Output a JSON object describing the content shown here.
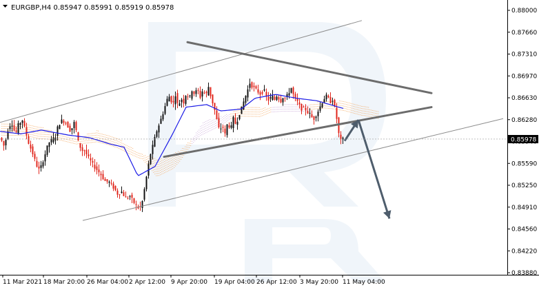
{
  "chart_data": {
    "type": "candlestick",
    "symbol_header": "EURGBP,H4  0.85947  0.85991  0.85919  0.85978",
    "current_price": "0.85978",
    "y_ticks": [
      "0.88000",
      "0.87660",
      "0.87310",
      "0.86970",
      "0.86630",
      "0.86280",
      "0.85940",
      "0.85590",
      "0.85250",
      "0.84910",
      "0.84560",
      "0.84220",
      "0.83880"
    ],
    "ylim": [
      0.8388,
      0.88
    ],
    "x_ticks": [
      "11 Mar 2021",
      "18 Mar 20:00",
      "26 Mar 04:00",
      "2 Apr 12:00",
      "9 Apr 20:00",
      "19 Apr 04:00",
      "26 Apr 12:00",
      "3 May 20:00",
      "11 May 04:00"
    ],
    "price_path": [
      [
        0,
        0.86
      ],
      [
        6,
        0.8585
      ],
      [
        10,
        0.861
      ],
      [
        16,
        0.8625
      ],
      [
        22,
        0.8605
      ],
      [
        26,
        0.862
      ],
      [
        32,
        0.8628
      ],
      [
        36,
        0.8612
      ],
      [
        41,
        0.8592
      ],
      [
        47,
        0.8575
      ],
      [
        52,
        0.8558
      ],
      [
        57,
        0.8548
      ],
      [
        64,
        0.8571
      ],
      [
        70,
        0.8592
      ],
      [
        75,
        0.8596
      ],
      [
        80,
        0.8602
      ],
      [
        84,
        0.862
      ],
      [
        90,
        0.8628
      ],
      [
        96,
        0.8622
      ],
      [
        102,
        0.861
      ],
      [
        108,
        0.8626
      ],
      [
        112,
        0.8596
      ],
      [
        118,
        0.858
      ],
      [
        122,
        0.858
      ],
      [
        128,
        0.8568
      ],
      [
        134,
        0.8558
      ],
      [
        140,
        0.855
      ],
      [
        146,
        0.8542
      ],
      [
        152,
        0.8532
      ],
      [
        158,
        0.853
      ],
      [
        164,
        0.8522
      ],
      [
        170,
        0.8512
      ],
      [
        176,
        0.8515
      ],
      [
        182,
        0.8505
      ],
      [
        188,
        0.8508
      ],
      [
        194,
        0.8498
      ],
      [
        198,
        0.8492
      ],
      [
        202,
        0.8488
      ],
      [
        206,
        0.85
      ],
      [
        210,
        0.8525
      ],
      [
        214,
        0.8552
      ],
      [
        218,
        0.8575
      ],
      [
        222,
        0.859
      ],
      [
        226,
        0.8608
      ],
      [
        230,
        0.862
      ],
      [
        234,
        0.8632
      ],
      [
        238,
        0.8646
      ],
      [
        242,
        0.866
      ],
      [
        246,
        0.8666
      ],
      [
        250,
        0.865
      ],
      [
        254,
        0.8668
      ],
      [
        258,
        0.8648
      ],
      [
        262,
        0.8662
      ],
      [
        266,
        0.8656
      ],
      [
        270,
        0.8671
      ],
      [
        274,
        0.866
      ],
      [
        278,
        0.8675
      ],
      [
        282,
        0.8668
      ],
      [
        286,
        0.8677
      ],
      [
        290,
        0.8664
      ],
      [
        294,
        0.8676
      ],
      [
        298,
        0.8665
      ],
      [
        302,
        0.868
      ],
      [
        306,
        0.8662
      ],
      [
        310,
        0.8648
      ],
      [
        314,
        0.8628
      ],
      [
        318,
        0.861
      ],
      [
        322,
        0.862
      ],
      [
        326,
        0.8605
      ],
      [
        330,
        0.8625
      ],
      [
        334,
        0.8612
      ],
      [
        338,
        0.863
      ],
      [
        342,
        0.862
      ],
      [
        346,
        0.8636
      ],
      [
        350,
        0.8646
      ],
      [
        354,
        0.866
      ],
      [
        358,
        0.8672
      ],
      [
        362,
        0.8686
      ],
      [
        366,
        0.868
      ],
      [
        370,
        0.8676
      ],
      [
        374,
        0.8672
      ],
      [
        378,
        0.8668
      ],
      [
        382,
        0.8676
      ],
      [
        386,
        0.8664
      ],
      [
        390,
        0.8658
      ],
      [
        394,
        0.8666
      ],
      [
        398,
        0.866
      ],
      [
        402,
        0.8668
      ],
      [
        406,
        0.8656
      ],
      [
        410,
        0.8664
      ],
      [
        414,
        0.8661
      ],
      [
        418,
        0.867
      ],
      [
        422,
        0.8678
      ],
      [
        426,
        0.8664
      ],
      [
        430,
        0.8658
      ],
      [
        434,
        0.865
      ],
      [
        438,
        0.8644
      ],
      [
        442,
        0.8646
      ],
      [
        446,
        0.864
      ],
      [
        450,
        0.8636
      ],
      [
        454,
        0.8628
      ],
      [
        458,
        0.8636
      ],
      [
        462,
        0.8644
      ],
      [
        466,
        0.8654
      ],
      [
        470,
        0.8662
      ],
      [
        474,
        0.8666
      ],
      [
        478,
        0.8656
      ],
      [
        482,
        0.866
      ],
      [
        484,
        0.8652
      ],
      [
        486,
        0.8642
      ],
      [
        488,
        0.863
      ],
      [
        490,
        0.8612
      ],
      [
        492,
        0.86
      ],
      [
        494,
        0.8596
      ],
      [
        496,
        0.8598
      ],
      [
        498,
        0.8597
      ]
    ],
    "cloud_path": [
      [
        0,
        0.8625
      ],
      [
        40,
        0.8624
      ],
      [
        80,
        0.861
      ],
      [
        110,
        0.86
      ],
      [
        140,
        0.8612
      ],
      [
        170,
        0.86
      ],
      [
        200,
        0.8578
      ],
      [
        230,
        0.8566
      ],
      [
        260,
        0.858
      ],
      [
        290,
        0.8612
      ],
      [
        320,
        0.8628
      ],
      [
        350,
        0.8652
      ],
      [
        380,
        0.8648
      ],
      [
        410,
        0.865
      ],
      [
        440,
        0.865
      ],
      [
        470,
        0.866
      ],
      [
        500,
        0.8658
      ],
      [
        530,
        0.865
      ],
      [
        548,
        0.8642
      ]
    ],
    "kijun_path": [
      [
        0,
        0.861
      ],
      [
        30,
        0.8606
      ],
      [
        60,
        0.8612
      ],
      [
        100,
        0.8604
      ],
      [
        130,
        0.86
      ],
      [
        160,
        0.859
      ],
      [
        180,
        0.8585
      ],
      [
        200,
        0.854
      ],
      [
        225,
        0.8555
      ],
      [
        250,
        0.8605
      ],
      [
        270,
        0.8648
      ],
      [
        300,
        0.8652
      ],
      [
        320,
        0.8642
      ],
      [
        350,
        0.8645
      ],
      [
        370,
        0.8662
      ],
      [
        400,
        0.8668
      ],
      [
        430,
        0.8662
      ],
      [
        460,
        0.8658
      ],
      [
        485,
        0.865
      ],
      [
        498,
        0.8646
      ]
    ],
    "drawings": [
      {
        "kind": "channel-upper",
        "p1": [
          0,
          0.8624
        ],
        "p2": [
          525,
          0.8784
        ]
      },
      {
        "kind": "channel-lower",
        "p1": [
          120,
          0.847
        ],
        "p2": [
          730,
          0.863
        ]
      },
      {
        "kind": "triangle-upper",
        "p1": [
          272,
          0.875
        ],
        "p2": [
          626,
          0.867
        ]
      },
      {
        "kind": "triangle-lower",
        "p1": [
          238,
          0.857
        ],
        "p2": [
          626,
          0.8648
        ]
      },
      {
        "kind": "arrow-up",
        "p1": [
          500,
          0.8595
        ],
        "p2": [
          520,
          0.8628
        ]
      },
      {
        "kind": "arrow-down",
        "p1": [
          520,
          0.8628
        ],
        "p2": [
          565,
          0.8473
        ]
      }
    ],
    "colors": {
      "bull": "#111111",
      "bear": "#e0251b",
      "kijun": "#1a1ae6",
      "cloud_up": "#f4a45a",
      "cloud_down": "#c8a6d8",
      "trend_line": "#6c6c6c",
      "arrow": "#4e5d6c",
      "price_tag": "#000000",
      "watermark": "#e3ecf5"
    }
  }
}
